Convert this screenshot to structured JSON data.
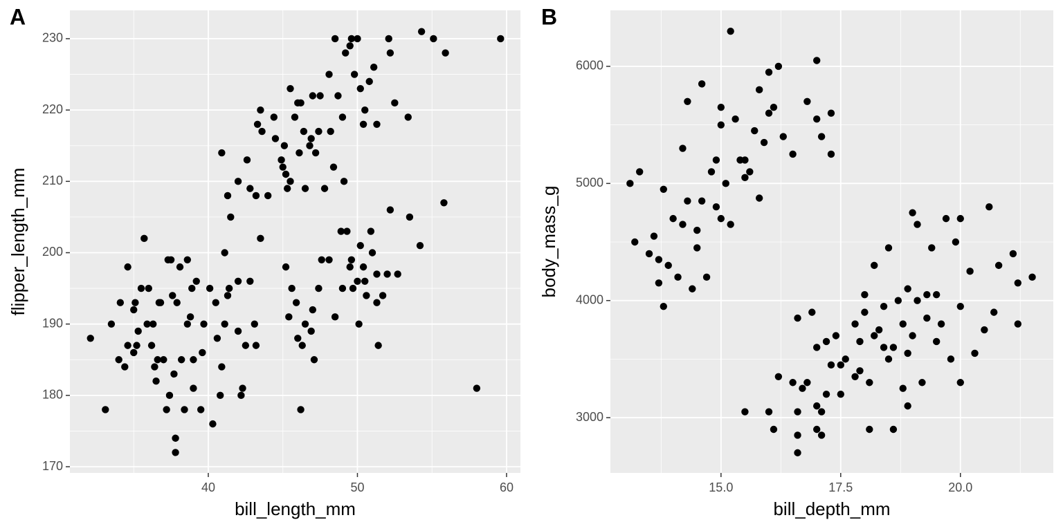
{
  "chart_data": [
    {
      "type": "scatter",
      "panel_label": "A",
      "x_label": "bill_length_mm",
      "y_label": "flipper_length_mm",
      "color": "#000000",
      "grid": true,
      "xlim": [
        30.72,
        60.93
      ],
      "ylim": [
        169.13,
        233.97
      ],
      "xticks": [
        40,
        50,
        60
      ],
      "yticks": [
        170,
        180,
        190,
        200,
        210,
        220,
        230
      ],
      "x": [
        32.1,
        33.1,
        33.5,
        34.0,
        34.1,
        34.4,
        34.6,
        34.6,
        35.0,
        35.1,
        35.2,
        35.3,
        35.5,
        35.7,
        35.9,
        36.0,
        36.2,
        36.4,
        36.6,
        36.7,
        36.8,
        37.0,
        37.2,
        37.3,
        37.5,
        37.6,
        37.7,
        37.8,
        37.8,
        37.9,
        38.1,
        38.2,
        38.6,
        38.6,
        38.8,
        39.0,
        39.2,
        39.5,
        39.6,
        39.7,
        40.1,
        40.3,
        40.6,
        40.8,
        40.9,
        41.1,
        41.1,
        41.4,
        41.5,
        42.0,
        42.2,
        42.3,
        42.5,
        42.8,
        43.1,
        43.2,
        43.5,
        36.5,
        37.4,
        38.4,
        39.0,
        35.0,
        36.3,
        38.9,
        40.5,
        41.3,
        42.0,
        40.9,
        41.3,
        42.0,
        42.6,
        42.8,
        43.2,
        43.3,
        43.5,
        43.6,
        44.0,
        44.4,
        44.5,
        45.0,
        45.1,
        45.2,
        45.5,
        45.5,
        45.8,
        46.1,
        46.2,
        46.4,
        46.5,
        46.8,
        47.0,
        47.2,
        47.5,
        47.8,
        48.2,
        48.4,
        48.5,
        48.7,
        49.0,
        49.1,
        49.2,
        49.5,
        49.6,
        49.8,
        50.0,
        50.2,
        50.5,
        50.8,
        51.1,
        51.3,
        52.1,
        52.2,
        52.5,
        53.4,
        54.3,
        55.1,
        55.9,
        59.6,
        45.3,
        44.9,
        46.9,
        48.1,
        50.4,
        46.0,
        47.4,
        45.2,
        45.4,
        45.6,
        45.9,
        46.0,
        46.2,
        46.3,
        46.5,
        46.9,
        47.0,
        47.1,
        47.4,
        47.6,
        48.1,
        48.5,
        48.9,
        49.0,
        49.3,
        49.5,
        49.7,
        50.0,
        50.1,
        50.2,
        50.4,
        50.6,
        50.9,
        51.0,
        51.3,
        51.4,
        51.7,
        52.0,
        52.2,
        52.7,
        53.5,
        54.2,
        55.8,
        58.0,
        49.6,
        50.5,
        51.3
      ],
      "values": [
        188,
        178,
        190,
        185,
        193,
        184,
        187,
        198,
        192,
        193,
        187,
        189,
        195,
        202,
        190,
        195,
        187,
        184,
        185,
        193,
        193,
        185,
        178,
        199,
        199,
        194,
        183,
        174,
        172,
        193,
        198,
        185,
        199,
        190,
        191,
        185,
        196,
        178,
        186,
        190,
        195,
        176,
        188,
        180,
        184,
        190,
        200,
        195,
        205,
        189,
        180,
        181,
        187,
        196,
        190,
        187,
        202,
        182,
        180,
        178,
        181,
        186,
        190,
        195,
        193,
        194,
        196,
        214,
        208,
        210,
        213,
        209,
        208,
        218,
        220,
        217,
        208,
        219,
        216,
        212,
        215,
        211,
        210,
        223,
        219,
        214,
        221,
        217,
        209,
        215,
        222,
        214,
        222,
        209,
        217,
        212,
        230,
        222,
        219,
        210,
        228,
        229,
        230,
        225,
        230,
        223,
        220,
        224,
        226,
        218,
        230,
        228,
        221,
        219,
        231,
        230,
        228,
        230,
        209,
        213,
        216,
        225,
        218,
        221,
        217,
        198,
        191,
        195,
        193,
        188,
        178,
        187,
        190,
        189,
        192,
        185,
        195,
        199,
        199,
        191,
        203,
        195,
        203,
        198,
        195,
        196,
        190,
        201,
        198,
        194,
        203,
        200,
        197,
        187,
        194,
        197,
        206,
        197,
        205,
        201,
        207,
        181,
        199,
        196,
        193
      ]
    },
    {
      "type": "scatter",
      "panel_label": "B",
      "x_label": "bill_depth_mm",
      "y_label": "body_mass_g",
      "color": "#000000",
      "grid": true,
      "xlim": [
        12.69,
        21.94
      ],
      "ylim": [
        2528,
        6478
      ],
      "xticks": [
        {
          "value": 15,
          "label": "15.0"
        },
        17.5,
        {
          "value": 20,
          "label": "20.0"
        }
      ],
      "yticks": [
        3000,
        4000,
        5000,
        6000
      ],
      "x": [
        13.1,
        13.2,
        13.3,
        13.5,
        13.6,
        13.7,
        13.7,
        13.8,
        13.8,
        13.9,
        14.0,
        14.1,
        14.2,
        14.2,
        14.3,
        14.4,
        14.5,
        14.5,
        14.6,
        14.6,
        14.7,
        14.8,
        14.9,
        15.0,
        15.0,
        15.0,
        15.1,
        15.2,
        15.2,
        15.3,
        15.4,
        15.5,
        15.7,
        15.8,
        15.8,
        15.9,
        16.0,
        16.1,
        16.2,
        16.3,
        16.5,
        16.8,
        17.0,
        17.0,
        17.1,
        17.3,
        17.3,
        14.9,
        15.6,
        16.0,
        14.3,
        15.5,
        15.5,
        16.0,
        16.1,
        16.2,
        16.5,
        16.6,
        16.6,
        16.6,
        16.7,
        16.8,
        17.0,
        17.0,
        17.1,
        17.1,
        17.2,
        17.3,
        17.4,
        17.5,
        17.6,
        17.8,
        17.8,
        17.9,
        18.0,
        18.1,
        18.1,
        18.2,
        18.3,
        18.4,
        18.5,
        18.6,
        18.6,
        18.7,
        18.8,
        18.9,
        18.9,
        19.0,
        19.0,
        19.1,
        19.2,
        19.3,
        19.4,
        19.5,
        19.6,
        19.7,
        19.8,
        19.9,
        20.0,
        20.0,
        20.2,
        20.3,
        20.5,
        20.6,
        20.7,
        20.8,
        21.1,
        21.2,
        21.2,
        21.5,
        17.9,
        18.5,
        18.2,
        17.5,
        18.8,
        19.1,
        17.0,
        16.6,
        18.0,
        19.3,
        17.2,
        18.4,
        18.9,
        20.0,
        19.5,
        16.9
      ],
      "values": [
        5000,
        4500,
        5100,
        4400,
        4550,
        4150,
        4350,
        3950,
        4950,
        4300,
        4700,
        4200,
        4650,
        5300,
        5700,
        4100,
        4450,
        4600,
        4850,
        5850,
        4200,
        5100,
        5200,
        4700,
        5500,
        5650,
        5000,
        4650,
        6300,
        5550,
        5200,
        5050,
        5450,
        4875,
        5800,
        5350,
        5950,
        5650,
        6000,
        5400,
        5250,
        5700,
        6050,
        5550,
        5400,
        5600,
        5250,
        4800,
        5100,
        5600,
        4850,
        5200,
        3050,
        3050,
        2900,
        3350,
        3300,
        2700,
        2850,
        3050,
        3250,
        3300,
        3600,
        2900,
        2850,
        3050,
        3200,
        3450,
        3700,
        3200,
        3500,
        3350,
        3800,
        3650,
        3900,
        3300,
        2900,
        4300,
        3750,
        3950,
        4450,
        3600,
        2900,
        4000,
        3250,
        3100,
        4100,
        3700,
        4750,
        4650,
        3300,
        3850,
        4450,
        4050,
        3800,
        4700,
        3500,
        4500,
        3300,
        4700,
        4250,
        3550,
        3750,
        4800,
        3900,
        4300,
        4400,
        4150,
        3800,
        4200,
        3400,
        3500,
        3700,
        3450,
        3800,
        4000,
        3100,
        3850,
        4050,
        4050,
        3650,
        3600,
        3550,
        3950,
        3650,
        3900
      ]
    }
  ]
}
